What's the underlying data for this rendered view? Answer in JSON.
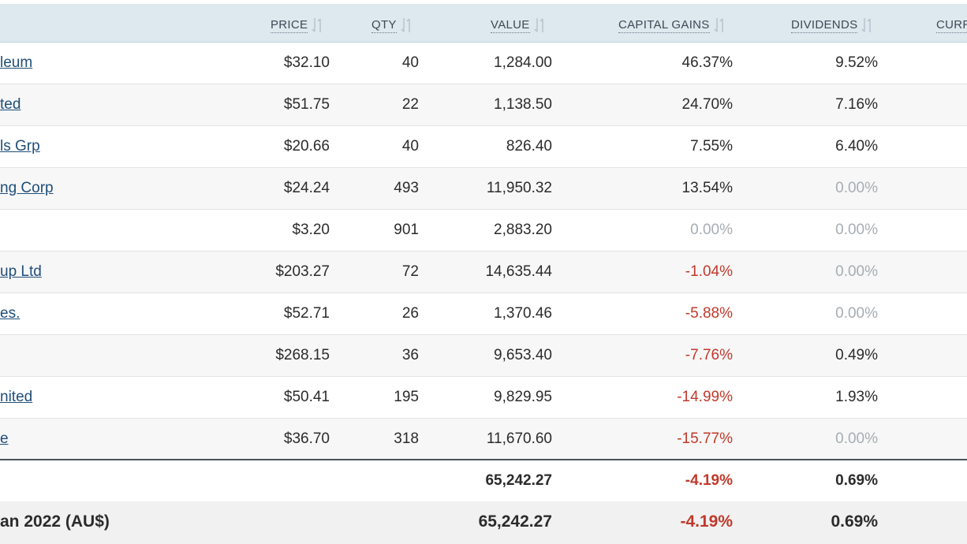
{
  "headers": {
    "price": "PRICE",
    "qty": "QTY",
    "value": "VALUE",
    "capital_gains": "CAPITAL GAINS",
    "dividends": "DIVIDENDS",
    "currency_partial": "CURR"
  },
  "rows": [
    {
      "name": "leum",
      "price": "$32.10",
      "qty": "40",
      "value": "1,284.00",
      "cg": "46.37%",
      "div": "9.52%",
      "cg_state": "pos",
      "div_state": "pos"
    },
    {
      "name": "ted",
      "price": "$51.75",
      "qty": "22",
      "value": "1,138.50",
      "cg": "24.70%",
      "div": "7.16%",
      "cg_state": "pos",
      "div_state": "pos"
    },
    {
      "name": "ls Grp",
      "price": "$20.66",
      "qty": "40",
      "value": "826.40",
      "cg": "7.55%",
      "div": "6.40%",
      "cg_state": "pos",
      "div_state": "pos"
    },
    {
      "name": "ng Corp",
      "price": "$24.24",
      "qty": "493",
      "value": "11,950.32",
      "cg": "13.54%",
      "div": "0.00%",
      "cg_state": "pos",
      "div_state": "zero"
    },
    {
      "name": "",
      "price": "$3.20",
      "qty": "901",
      "value": "2,883.20",
      "cg": "0.00%",
      "div": "0.00%",
      "cg_state": "zero",
      "div_state": "zero"
    },
    {
      "name": "up Ltd",
      "price": "$203.27",
      "qty": "72",
      "value": "14,635.44",
      "cg": "-1.04%",
      "div": "0.00%",
      "cg_state": "neg",
      "div_state": "zero"
    },
    {
      "name": "es.",
      "price": "$52.71",
      "qty": "26",
      "value": "1,370.46",
      "cg": "-5.88%",
      "div": "0.00%",
      "cg_state": "neg",
      "div_state": "zero"
    },
    {
      "name": "",
      "price": "$268.15",
      "qty": "36",
      "value": "9,653.40",
      "cg": "-7.76%",
      "div": "0.49%",
      "cg_state": "neg",
      "div_state": "pos"
    },
    {
      "name": "nited",
      "price": "$50.41",
      "qty": "195",
      "value": "9,829.95",
      "cg": "-14.99%",
      "div": "1.93%",
      "cg_state": "neg",
      "div_state": "pos"
    },
    {
      "name": "e",
      "price": "$36.70",
      "qty": "318",
      "value": "11,670.60",
      "cg": "-15.77%",
      "div": "0.00%",
      "cg_state": "neg",
      "div_state": "zero"
    }
  ],
  "total": {
    "value": "65,242.27",
    "cg": "-4.19%",
    "div": "0.69%"
  },
  "grand_total": {
    "label": "an 2022 (AU$)",
    "value": "65,242.27",
    "cg": "-4.19%",
    "div": "0.69%"
  },
  "colors": {
    "header_bg": "#dde8ef",
    "link": "#1f4e79",
    "negative": "#c0392b",
    "zero": "#a6adb2"
  }
}
